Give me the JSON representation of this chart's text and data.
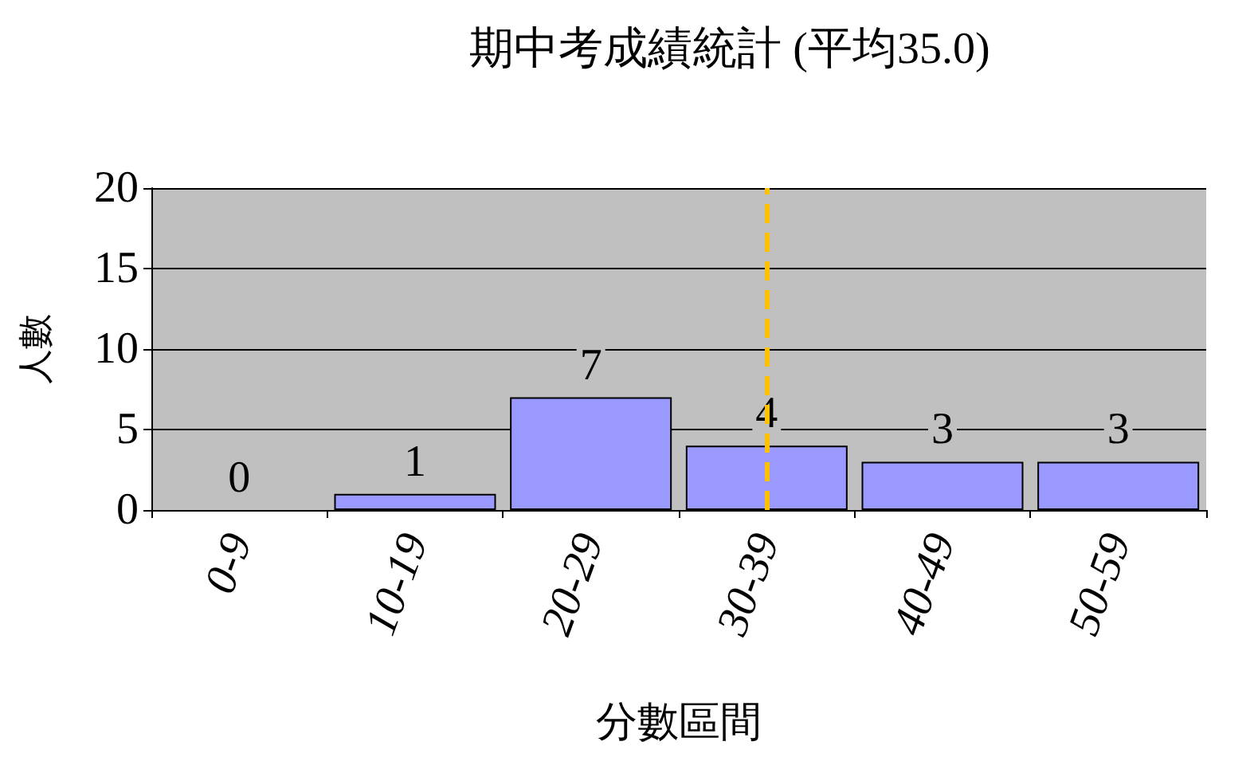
{
  "chart_data": {
    "type": "bar",
    "title": "期中考成績統計 (平均35.0)",
    "xlabel": "分數區間",
    "ylabel": "人數",
    "categories": [
      "0-9",
      "10-19",
      "20-29",
      "30-39",
      "40-49",
      "50-59"
    ],
    "values": [
      0,
      1,
      7,
      4,
      3,
      3
    ],
    "color": "#9999ff",
    "ylim": [
      0,
      20
    ],
    "yticks": [
      0,
      5,
      10,
      15,
      20
    ],
    "grid": "y",
    "data_labels": true,
    "ref_lines": [
      {
        "axis": "x",
        "value": "30-39",
        "color": "#ffc000",
        "line_style": "dashed"
      }
    ]
  }
}
